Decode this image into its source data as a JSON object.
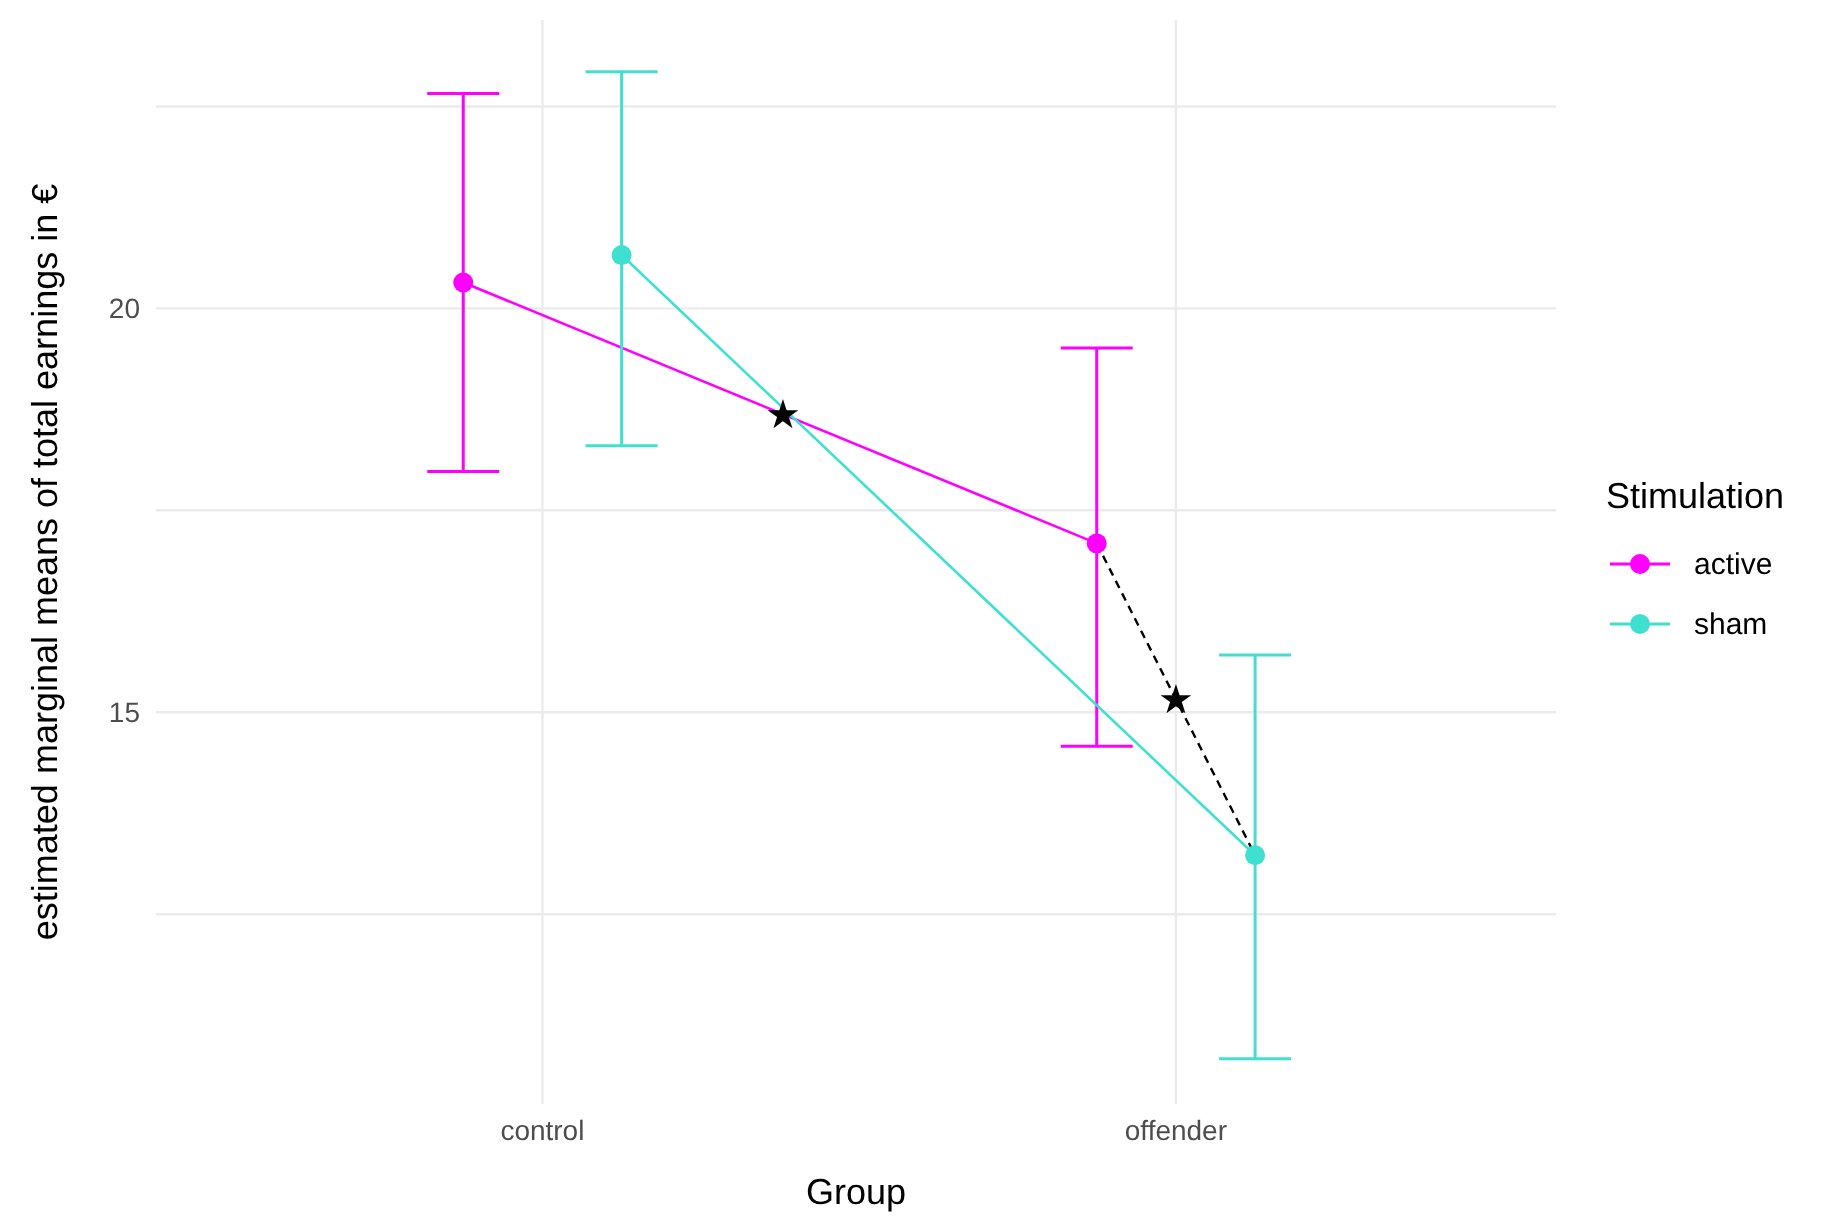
{
  "chart_data": {
    "type": "line",
    "xlabel": "Group",
    "ylabel": "estimated marginal means of total earnings in €",
    "legend_title": "Stimulation",
    "categories": [
      "control",
      "offender"
    ],
    "ylim": [
      10.15,
      23.57
    ],
    "yticks": [
      {
        "value": 12.5,
        "label": null
      },
      15,
      {
        "value": 17.5,
        "label": null
      },
      20,
      {
        "value": 22.5,
        "label": null
      }
    ],
    "series": [
      {
        "name": "active",
        "color": "#ff00ff",
        "values": [
          20.32,
          17.09
        ],
        "errors": [
          [
            17.98,
            22.66
          ],
          [
            14.58,
            19.51
          ]
        ]
      },
      {
        "name": "sham",
        "color": "#40e0d0",
        "values": [
          20.66,
          13.23
        ],
        "errors": [
          [
            18.3,
            22.93
          ],
          [
            10.71,
            15.71
          ]
        ]
      }
    ],
    "annotations": [
      {
        "text": "★",
        "y": 18.69
      },
      "★"
    ],
    "marker": "circle",
    "grid": true,
    "legend": "right"
  }
}
